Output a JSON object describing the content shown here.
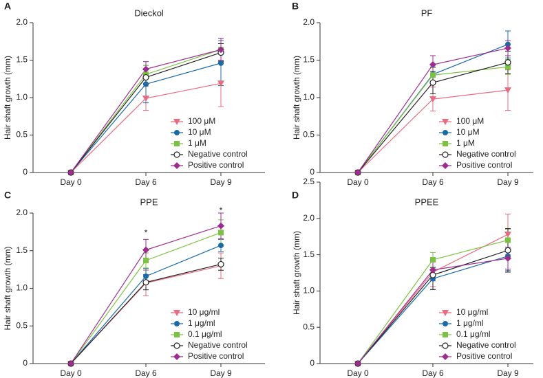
{
  "chart_data": [
    {
      "type": "line",
      "panel": "A",
      "title": "Dieckol",
      "y_label": "Hair shaft growth (mm)",
      "categories": [
        "Day 0",
        "Day 6",
        "Day 9"
      ],
      "ylim": [
        0,
        2
      ],
      "yticks": [
        0,
        0.5,
        {
          "value": 1,
          "label": "1.0"
        },
        1.5,
        {
          "value": 2,
          "label": "2.0"
        }
      ],
      "legend": "lower right",
      "series": [
        {
          "name": "100 μM",
          "color": "#e96b7f",
          "marker": "triangle-down",
          "values": [
            0,
            0.99,
            1.19
          ],
          "errors": [
            null,
            0.16,
            0.31
          ]
        },
        {
          "name": "10 μM",
          "color": "#1a6aa8",
          "marker": "circle",
          "values": [
            0,
            1.18,
            1.46
          ],
          "errors": [
            null,
            0.25,
            0.3
          ]
        },
        {
          "name": "1 μM",
          "color": "#7cc242",
          "marker": "square",
          "values": [
            0,
            1.31,
            1.64
          ],
          "errors": [
            null,
            0.12,
            0.15
          ]
        },
        {
          "name": "Negative control",
          "color": "#222222",
          "marker": "open-circle",
          "values": [
            0,
            1.27,
            1.6
          ],
          "errors": [
            null,
            0.1,
            0.12
          ]
        },
        {
          "name": "Positive control",
          "color": "#9c2d8f",
          "marker": "diamond",
          "values": [
            0,
            1.38,
            1.64
          ],
          "errors": [
            null,
            0.1,
            0.15
          ]
        }
      ]
    },
    {
      "type": "line",
      "panel": "B",
      "title": "PF",
      "y_label": "Hair shaft growth (mm)",
      "categories": [
        "Day 0",
        "Day 6",
        "Day 9"
      ],
      "ylim": [
        0,
        2
      ],
      "yticks": [
        0,
        0.5,
        {
          "value": 1,
          "label": "1.0"
        },
        1.5,
        {
          "value": 2,
          "label": "2.0"
        }
      ],
      "legend": "lower right",
      "series": [
        {
          "name": "100 μM",
          "color": "#e96b7f",
          "marker": "triangle-down",
          "values": [
            0,
            0.98,
            1.1
          ],
          "errors": [
            null,
            0.16,
            0.27
          ]
        },
        {
          "name": "10 μM",
          "color": "#1a6aa8",
          "marker": "circle",
          "values": [
            0,
            1.31,
            1.71
          ],
          "errors": [
            null,
            0.1,
            0.18
          ]
        },
        {
          "name": "1 μM",
          "color": "#7cc242",
          "marker": "square",
          "values": [
            0,
            1.3,
            1.41
          ],
          "errors": [
            null,
            0.1,
            0.1
          ]
        },
        {
          "name": "Negative control",
          "color": "#222222",
          "marker": "open-circle",
          "values": [
            0,
            1.2,
            1.47
          ],
          "errors": [
            null,
            0.15,
            0.15
          ]
        },
        {
          "name": "Positive control",
          "color": "#9c2d8f",
          "marker": "diamond",
          "values": [
            0,
            1.44,
            1.66
          ],
          "errors": [
            null,
            0.12,
            0.1
          ]
        }
      ]
    },
    {
      "type": "line",
      "panel": "C",
      "title": "PPE",
      "y_label": "Hair shaft growth (mm)",
      "categories": [
        "Day 0",
        "Day 6",
        "Day 9"
      ],
      "ylim": [
        0,
        2
      ],
      "yticks": [
        0,
        0.5,
        {
          "value": 1,
          "label": "1.0"
        },
        1.5,
        {
          "value": 2,
          "label": "2.0"
        }
      ],
      "legend": "lower right",
      "annotations": [
        {
          "text": "*",
          "category": 1,
          "y": 1.73
        },
        {
          "text": "*",
          "category": 2,
          "y": 2.03
        }
      ],
      "series": [
        {
          "name": "10 μg/ml",
          "color": "#e96b7f",
          "marker": "triangle-down",
          "values": [
            0,
            1.07,
            1.3
          ],
          "errors": [
            null,
            0.17,
            0.17
          ]
        },
        {
          "name": "1 μg/ml",
          "color": "#1a6aa8",
          "marker": "circle",
          "values": [
            0,
            1.16,
            1.57
          ],
          "errors": [
            null,
            0.1,
            0.08
          ]
        },
        {
          "name": "0.1 μg/ml",
          "color": "#7cc242",
          "marker": "square",
          "values": [
            0,
            1.37,
            1.74
          ],
          "errors": [
            null,
            0.1,
            0.17
          ]
        },
        {
          "name": "Negative control",
          "color": "#222222",
          "marker": "open-circle",
          "values": [
            0,
            1.08,
            1.32
          ],
          "errors": [
            null,
            0.1,
            0.08
          ]
        },
        {
          "name": "Positive control",
          "color": "#9c2d8f",
          "marker": "diamond",
          "values": [
            0,
            1.51,
            1.83
          ],
          "errors": [
            null,
            0.14,
            0.17
          ]
        }
      ]
    },
    {
      "type": "line",
      "panel": "D",
      "title": "PPEE",
      "y_label": "Hair shaft growth (mm)",
      "categories": [
        "Day 0",
        "Day 6",
        "Day 9"
      ],
      "ylim": [
        0,
        2.5
      ],
      "yticks": [
        0,
        0.5,
        {
          "value": 1,
          "label": "1.0"
        },
        1.5,
        {
          "value": 2,
          "label": "2.0"
        },
        2.5
      ],
      "legend": "lower right",
      "series": [
        {
          "name": "10 μg/ml",
          "color": "#e96b7f",
          "marker": "triangle-down",
          "values": [
            0,
            1.26,
            1.78
          ],
          "errors": [
            null,
            0.2,
            0.28
          ]
        },
        {
          "name": "1 μg/ml",
          "color": "#1a6aa8",
          "marker": "circle",
          "values": [
            0,
            1.17,
            1.48
          ],
          "errors": [
            null,
            0.15,
            0.2
          ]
        },
        {
          "name": "0.1 μg/ml",
          "color": "#7cc242",
          "marker": "square",
          "values": [
            0,
            1.43,
            1.7
          ],
          "errors": [
            null,
            0.1,
            0.15
          ]
        },
        {
          "name": "Negative control",
          "color": "#222222",
          "marker": "open-circle",
          "values": [
            0,
            1.22,
            1.56
          ],
          "errors": [
            null,
            0.2,
            0.3
          ]
        },
        {
          "name": "Positive control",
          "color": "#9c2d8f",
          "marker": "diamond",
          "values": [
            0,
            1.29,
            1.45
          ],
          "errors": [
            null,
            0.15,
            0.15
          ]
        }
      ]
    }
  ]
}
